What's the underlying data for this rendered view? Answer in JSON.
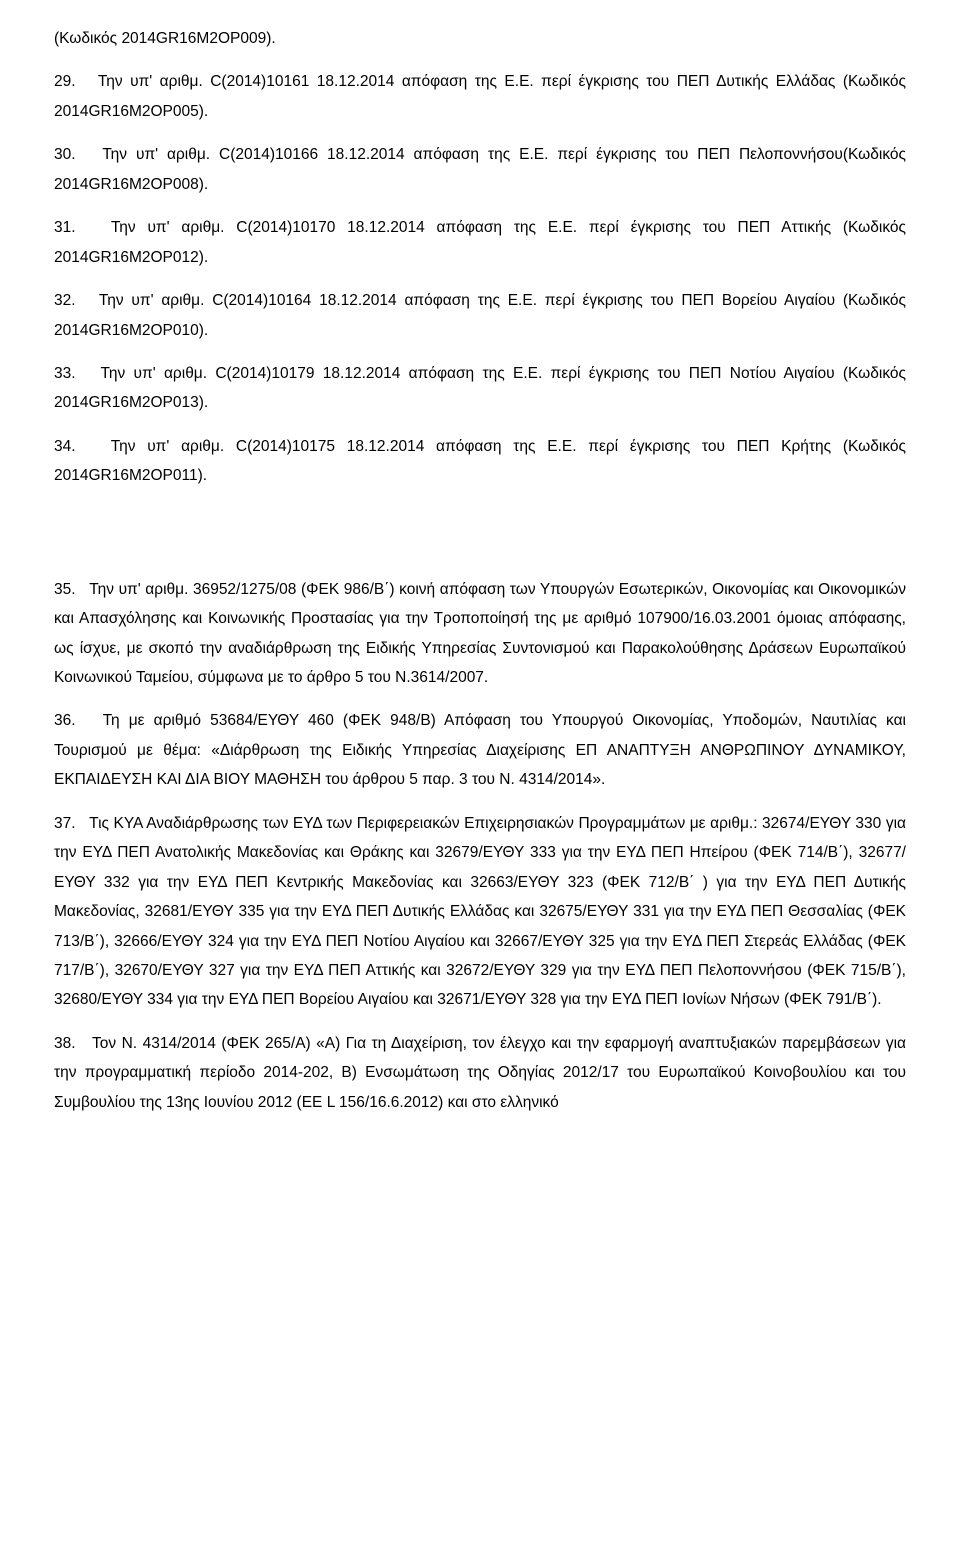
{
  "p01": "(Κωδικός 2014GR16M2OP009).",
  "p02": "29.   Την υπ' αριθμ. C(2014)10161 18.12.2014 απόφαση της Ε.Ε. περί έγκρισης του ΠΕΠ Δυτικής Ελλάδας (Κωδικός 2014GR16M2OP005).",
  "p03": "30.   Την υπ' αριθμ. C(2014)10166 18.12.2014 απόφαση της Ε.Ε. περί έγκρισης του ΠΕΠ Πελοποννήσου(Κωδικός 2014GR16M2OP008).",
  "p04": "31.   Την υπ' αριθμ. C(2014)10170 18.12.2014 απόφαση της Ε.Ε. περί έγκρισης του ΠΕΠ Αττικής (Κωδικός 2014GR16M2OP012).",
  "p05": "32.   Την υπ' αριθμ. C(2014)10164 18.12.2014 απόφαση της Ε.Ε. περί έγκρισης του ΠΕΠ Βορείου Αιγαίου (Κωδικός 2014GR16M2OP010).",
  "p06": "33.   Την υπ' αριθμ. C(2014)10179 18.12.2014 απόφαση της Ε.Ε. περί έγκρισης του ΠΕΠ Νοτίου Αιγαίου (Κωδικός 2014GR16M2OP013).",
  "p07": "34.   Την υπ' αριθμ. C(2014)10175 18.12.2014 απόφαση της Ε.Ε. περί έγκρισης του ΠΕΠ Κρήτης (Κωδικός 2014GR16M2OP011).",
  "p08": "35.   Την υπ' αριθμ. 36952/1275/08 (ΦΕΚ 986/Β΄) κοινή απόφαση των Υπουργών Εσωτερικών, Οικονομίας και Οικονομικών και Απασχόλησης και Κοινωνικής Προστασίας για την Τροποποίησή της με αριθμό 107900/16.03.2001 όμοιας απόφασης, ως ίσχυε, με σκοπό την αναδιάρθρωση της Ειδικής Υπηρεσίας Συντονισμού και Παρακολούθησης Δράσεων Ευρωπαϊκού Κοινωνικού Ταμείου, σύμφωνα με το άρθρο 5 του Ν.3614/2007.",
  "p09": "36.   Τη με αριθμό 53684/ΕΥΘΥ 460 (ΦΕΚ 948/Β) Απόφαση του Υπουργού Οικονομίας, Υποδομών, Ναυτιλίας και Τουρισμού με θέμα: «Διάρθρωση της Ειδικής Υπηρεσίας Διαχείρισης ΕΠ ΑΝΑΠΤΥΞΗ ΑΝΘΡΩΠΙΝΟΥ ΔΥΝΑΜΙΚΟΥ, ΕΚΠΑΙΔΕΥΣΗ ΚΑΙ ΔΙΑ ΒΙΟΥ ΜΑΘΗΣΗ του άρθρου 5 παρ. 3 του Ν. 4314/2014».",
  "p10": "37.   Τις ΚΥΑ Αναδιάρθρωσης των ΕΥΔ των Περιφερειακών Επιχειρησιακών Προγραμμάτων με αριθμ.: 32674/ΕΥΘΥ 330 για την ΕΥΔ ΠΕΠ Ανατολικής Μακεδονίας και Θράκης και 32679/ΕΥΘΥ 333 για την ΕΥΔ ΠΕΠ Ηπείρου (ΦΕΚ 714/Β΄), 32677/ ΕΥΘΥ 332 για την ΕΥΔ ΠΕΠ Κεντρικής Μακεδονίας και 32663/ΕΥΘΥ 323 (ΦΕΚ 712/Β΄ ) για την ΕΥΔ ΠΕΠ Δυτικής Μακεδονίας, 32681/ΕΥΘΥ 335 για την ΕΥΔ ΠΕΠ Δυτικής Ελλάδας και 32675/ΕΥΘΥ 331 για την ΕΥΔ ΠΕΠ Θεσσαλίας (ΦΕΚ 713/Β΄), 32666/ΕΥΘΥ 324 για την ΕΥΔ ΠΕΠ Νοτίου Αιγαίου και 32667/ΕΥΘΥ 325 για την ΕΥΔ ΠΕΠ Στερεάς Ελλάδας (ΦΕΚ 717/Β΄), 32670/ΕΥΘΥ 327 για την ΕΥΔ ΠΕΠ Αττικής και 32672/ΕΥΘΥ 329 για την ΕΥΔ ΠΕΠ Πελοποννήσου (ΦΕΚ 715/Β΄), 32680/ΕΥΘΥ 334 για την ΕΥΔ ΠΕΠ Βορείου Αιγαίου και 32671/ΕΥΘΥ 328 για την ΕΥΔ ΠΕΠ Ιονίων Νήσων (ΦΕΚ 791/Β΄).",
  "p11": "38.   Τον Ν. 4314/2014 (ΦΕΚ 265/Α) «Α) Για τη Διαχείριση, τον έλεγχο και την εφαρμογή αναπτυξιακών παρεμβάσεων για την προγραμματική περίοδο 2014-202, Β) Ενσωμάτωση της Οδηγίας  2012/17 του Ευρωπαϊκού Κοινοβουλίου και του Συμβουλίου της 13ης Ιουνίου 2012 (ΕΕ L 156/16.6.2012) και στο ελληνικό"
}
